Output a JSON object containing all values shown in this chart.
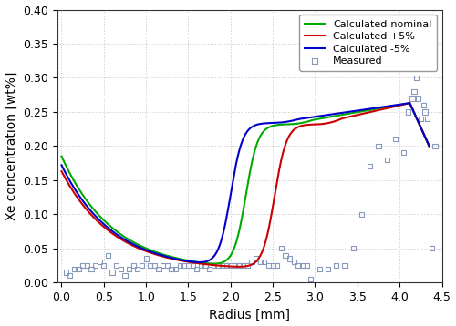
{
  "title": "",
  "xlabel": "Radius [mm]",
  "ylabel": "Xe concentration [wt%]",
  "xlim": [
    -0.05,
    4.5
  ],
  "ylim": [
    0,
    0.4
  ],
  "xticks": [
    0,
    0.5,
    1.0,
    1.5,
    2.0,
    2.5,
    3.0,
    3.5,
    4.0,
    4.5
  ],
  "yticks": [
    0,
    0.05,
    0.1,
    0.15,
    0.2,
    0.25,
    0.3,
    0.35,
    0.4
  ],
  "grid_color": "#c8c8c8",
  "background_color": "#ffffff",
  "line_nominal_color": "#00aa00",
  "line_plus_color": "#cc0000",
  "line_minus_color": "#0000cc",
  "measured_color": "#8899bb",
  "measured_marker": "s",
  "legend_labels": [
    "Calculated-nominal",
    "Calculated +5%",
    "Calculated -5%",
    "Measured"
  ],
  "measured_x": [
    0.05,
    0.1,
    0.15,
    0.2,
    0.25,
    0.3,
    0.35,
    0.4,
    0.45,
    0.5,
    0.55,
    0.6,
    0.65,
    0.7,
    0.75,
    0.8,
    0.85,
    0.9,
    0.95,
    1.0,
    1.05,
    1.1,
    1.15,
    1.2,
    1.25,
    1.3,
    1.35,
    1.4,
    1.45,
    1.5,
    1.55,
    1.6,
    1.65,
    1.7,
    1.75,
    1.8,
    1.85,
    1.9,
    1.95,
    2.0,
    2.05,
    2.1,
    2.15,
    2.2,
    2.25,
    2.3,
    2.35,
    2.4,
    2.45,
    2.5,
    2.55,
    2.6,
    2.65,
    2.7,
    2.75,
    2.8,
    2.85,
    2.9,
    2.95,
    3.05,
    3.15,
    3.25,
    3.35,
    3.45,
    3.55,
    3.65,
    3.75,
    3.85,
    3.95,
    4.05,
    4.1,
    4.15,
    4.17,
    4.2,
    4.22,
    4.25,
    4.28,
    4.3,
    4.33,
    4.38,
    4.42
  ],
  "measured_y": [
    0.015,
    0.01,
    0.02,
    0.02,
    0.025,
    0.025,
    0.02,
    0.025,
    0.03,
    0.025,
    0.04,
    0.015,
    0.025,
    0.02,
    0.01,
    0.02,
    0.025,
    0.02,
    0.025,
    0.035,
    0.025,
    0.025,
    0.02,
    0.025,
    0.025,
    0.02,
    0.02,
    0.025,
    0.025,
    0.025,
    0.025,
    0.02,
    0.025,
    0.025,
    0.02,
    0.025,
    0.025,
    0.025,
    0.025,
    0.025,
    0.025,
    0.025,
    0.025,
    0.025,
    0.03,
    0.035,
    0.03,
    0.03,
    0.025,
    0.025,
    0.025,
    0.05,
    0.04,
    0.035,
    0.03,
    0.025,
    0.025,
    0.025,
    0.005,
    0.02,
    0.02,
    0.025,
    0.025,
    0.05,
    0.1,
    0.17,
    0.2,
    0.18,
    0.21,
    0.19,
    0.25,
    0.27,
    0.28,
    0.3,
    0.27,
    0.24,
    0.26,
    0.25,
    0.24,
    0.05,
    0.2
  ]
}
